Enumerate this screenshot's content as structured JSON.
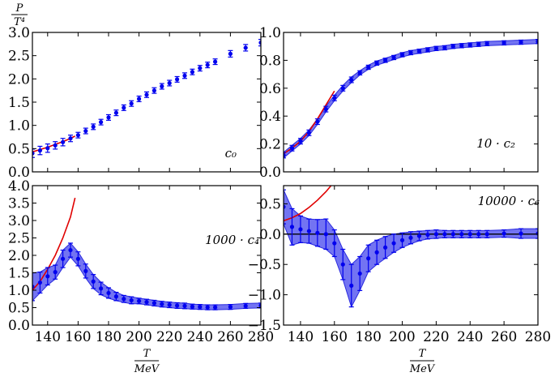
{
  "figure": {
    "ylabel_top": {
      "num": "P",
      "den": "T⁴"
    },
    "xlabel": {
      "num": "T",
      "den": "MeV"
    }
  },
  "chart_data": [
    {
      "type": "scatter",
      "panel": "c0",
      "label": "c₀",
      "xlim": [
        130,
        280
      ],
      "ylim": [
        0.0,
        3.0
      ],
      "xticks": [
        140,
        160,
        180,
        200,
        220,
        240,
        260,
        280
      ],
      "yticks": [
        "0.0",
        "0.5",
        "1.0",
        "1.5",
        "2.0",
        "2.5",
        "3.0"
      ],
      "show_xticklabels": false,
      "band": false,
      "points": [
        {
          "x": 130,
          "y": 0.4,
          "e": 0.09
        },
        {
          "x": 135,
          "y": 0.46,
          "e": 0.09
        },
        {
          "x": 140,
          "y": 0.51,
          "e": 0.09
        },
        {
          "x": 145,
          "y": 0.57,
          "e": 0.08
        },
        {
          "x": 150,
          "y": 0.64,
          "e": 0.08
        },
        {
          "x": 155,
          "y": 0.72,
          "e": 0.07
        },
        {
          "x": 160,
          "y": 0.79,
          "e": 0.06
        },
        {
          "x": 165,
          "y": 0.88,
          "e": 0.06
        },
        {
          "x": 170,
          "y": 0.97,
          "e": 0.06
        },
        {
          "x": 175,
          "y": 1.07,
          "e": 0.06
        },
        {
          "x": 180,
          "y": 1.17,
          "e": 0.06
        },
        {
          "x": 185,
          "y": 1.27,
          "e": 0.06
        },
        {
          "x": 190,
          "y": 1.38,
          "e": 0.06
        },
        {
          "x": 195,
          "y": 1.47,
          "e": 0.06
        },
        {
          "x": 200,
          "y": 1.57,
          "e": 0.06
        },
        {
          "x": 205,
          "y": 1.66,
          "e": 0.06
        },
        {
          "x": 210,
          "y": 1.75,
          "e": 0.06
        },
        {
          "x": 215,
          "y": 1.84,
          "e": 0.06
        },
        {
          "x": 220,
          "y": 1.91,
          "e": 0.06
        },
        {
          "x": 225,
          "y": 1.99,
          "e": 0.06
        },
        {
          "x": 230,
          "y": 2.07,
          "e": 0.06
        },
        {
          "x": 235,
          "y": 2.15,
          "e": 0.06
        },
        {
          "x": 240,
          "y": 2.23,
          "e": 0.06
        },
        {
          "x": 245,
          "y": 2.3,
          "e": 0.06
        },
        {
          "x": 250,
          "y": 2.37,
          "e": 0.06
        },
        {
          "x": 260,
          "y": 2.54,
          "e": 0.07
        },
        {
          "x": 270,
          "y": 2.67,
          "e": 0.07
        },
        {
          "x": 280,
          "y": 2.78,
          "e": 0.07
        }
      ],
      "red_curve": [
        [
          130,
          0.43
        ],
        [
          135,
          0.48
        ],
        [
          140,
          0.53
        ],
        [
          145,
          0.59
        ],
        [
          150,
          0.65
        ],
        [
          155,
          0.72
        ],
        [
          158,
          0.77
        ]
      ]
    },
    {
      "type": "scatter",
      "panel": "c2",
      "label": "10 · c₂",
      "xlim": [
        130,
        280
      ],
      "ylim": [
        0.0,
        1.0
      ],
      "xticks": [
        140,
        160,
        180,
        200,
        220,
        240,
        260,
        280
      ],
      "yticks": [
        "0.0",
        "0.2",
        "0.4",
        "0.6",
        "0.8",
        "1.0"
      ],
      "show_xticklabels": false,
      "band": true,
      "points": [
        {
          "x": 130,
          "y": 0.12,
          "e": 0.02
        },
        {
          "x": 135,
          "y": 0.17,
          "e": 0.02
        },
        {
          "x": 140,
          "y": 0.22,
          "e": 0.02
        },
        {
          "x": 145,
          "y": 0.28,
          "e": 0.02
        },
        {
          "x": 150,
          "y": 0.36,
          "e": 0.02
        },
        {
          "x": 155,
          "y": 0.45,
          "e": 0.02
        },
        {
          "x": 160,
          "y": 0.53,
          "e": 0.02
        },
        {
          "x": 165,
          "y": 0.6,
          "e": 0.02
        },
        {
          "x": 170,
          "y": 0.66,
          "e": 0.02
        },
        {
          "x": 175,
          "y": 0.71,
          "e": 0.015
        },
        {
          "x": 180,
          "y": 0.75,
          "e": 0.015
        },
        {
          "x": 185,
          "y": 0.78,
          "e": 0.015
        },
        {
          "x": 190,
          "y": 0.8,
          "e": 0.015
        },
        {
          "x": 195,
          "y": 0.82,
          "e": 0.015
        },
        {
          "x": 200,
          "y": 0.84,
          "e": 0.015
        },
        {
          "x": 205,
          "y": 0.855,
          "e": 0.015
        },
        {
          "x": 210,
          "y": 0.865,
          "e": 0.015
        },
        {
          "x": 215,
          "y": 0.875,
          "e": 0.015
        },
        {
          "x": 220,
          "y": 0.885,
          "e": 0.015
        },
        {
          "x": 225,
          "y": 0.89,
          "e": 0.015
        },
        {
          "x": 230,
          "y": 0.9,
          "e": 0.015
        },
        {
          "x": 235,
          "y": 0.905,
          "e": 0.015
        },
        {
          "x": 240,
          "y": 0.91,
          "e": 0.015
        },
        {
          "x": 245,
          "y": 0.915,
          "e": 0.015
        },
        {
          "x": 250,
          "y": 0.92,
          "e": 0.015
        },
        {
          "x": 260,
          "y": 0.925,
          "e": 0.015
        },
        {
          "x": 270,
          "y": 0.93,
          "e": 0.015
        },
        {
          "x": 280,
          "y": 0.935,
          "e": 0.015
        }
      ],
      "red_curve": [
        [
          130,
          0.13
        ],
        [
          135,
          0.17
        ],
        [
          140,
          0.22
        ],
        [
          145,
          0.29
        ],
        [
          150,
          0.38
        ],
        [
          155,
          0.48
        ],
        [
          160,
          0.58
        ]
      ]
    },
    {
      "type": "scatter",
      "panel": "c4",
      "label": "1000 · c₄",
      "xlim": [
        130,
        280
      ],
      "ylim": [
        0.0,
        4.0
      ],
      "xticks": [
        140,
        160,
        180,
        200,
        220,
        240,
        260,
        280
      ],
      "yticks": [
        "0.0",
        "0.5",
        "1.0",
        "1.5",
        "2.0",
        "2.5",
        "3.0",
        "3.5",
        "4.0"
      ],
      "show_xticklabels": true,
      "band": true,
      "points": [
        {
          "x": 130,
          "y": 1.1,
          "e": 0.4
        },
        {
          "x": 135,
          "y": 1.22,
          "e": 0.3
        },
        {
          "x": 140,
          "y": 1.4,
          "e": 0.25
        },
        {
          "x": 145,
          "y": 1.52,
          "e": 0.2
        },
        {
          "x": 150,
          "y": 1.9,
          "e": 0.25
        },
        {
          "x": 155,
          "y": 2.15,
          "e": 0.2
        },
        {
          "x": 160,
          "y": 1.9,
          "e": 0.2
        },
        {
          "x": 165,
          "y": 1.55,
          "e": 0.2
        },
        {
          "x": 170,
          "y": 1.25,
          "e": 0.2
        },
        {
          "x": 175,
          "y": 1.05,
          "e": 0.18
        },
        {
          "x": 180,
          "y": 0.92,
          "e": 0.15
        },
        {
          "x": 185,
          "y": 0.82,
          "e": 0.12
        },
        {
          "x": 190,
          "y": 0.75,
          "e": 0.1
        },
        {
          "x": 195,
          "y": 0.71,
          "e": 0.1
        },
        {
          "x": 200,
          "y": 0.69,
          "e": 0.08
        },
        {
          "x": 205,
          "y": 0.66,
          "e": 0.08
        },
        {
          "x": 210,
          "y": 0.63,
          "e": 0.08
        },
        {
          "x": 215,
          "y": 0.6,
          "e": 0.08
        },
        {
          "x": 220,
          "y": 0.58,
          "e": 0.08
        },
        {
          "x": 225,
          "y": 0.56,
          "e": 0.08
        },
        {
          "x": 230,
          "y": 0.55,
          "e": 0.08
        },
        {
          "x": 235,
          "y": 0.53,
          "e": 0.07
        },
        {
          "x": 240,
          "y": 0.52,
          "e": 0.07
        },
        {
          "x": 245,
          "y": 0.51,
          "e": 0.07
        },
        {
          "x": 250,
          "y": 0.51,
          "e": 0.07
        },
        {
          "x": 260,
          "y": 0.52,
          "e": 0.07
        },
        {
          "x": 270,
          "y": 0.55,
          "e": 0.07
        },
        {
          "x": 280,
          "y": 0.56,
          "e": 0.07
        }
      ],
      "red_curve": [
        [
          130,
          1.0
        ],
        [
          135,
          1.25
        ],
        [
          140,
          1.6
        ],
        [
          145,
          2.0
        ],
        [
          150,
          2.5
        ],
        [
          155,
          3.1
        ],
        [
          158,
          3.65
        ]
      ]
    },
    {
      "type": "scatter",
      "panel": "c6",
      "label": "10000 · c₆",
      "xlim": [
        130,
        280
      ],
      "ylim": [
        -1.5,
        0.8
      ],
      "xticks": [
        140,
        160,
        180,
        200,
        220,
        240,
        260,
        280
      ],
      "yticks": [
        "−1.5",
        "−1.0",
        "−0.5",
        "0.0",
        "0.5"
      ],
      "ytick_values": [
        -1.5,
        -1.0,
        -0.5,
        0.0,
        0.5
      ],
      "show_xticklabels": true,
      "band": true,
      "zero_line": true,
      "points": [
        {
          "x": 130,
          "y": 0.45,
          "e": 0.28
        },
        {
          "x": 135,
          "y": 0.12,
          "e": 0.3
        },
        {
          "x": 140,
          "y": 0.08,
          "e": 0.22
        },
        {
          "x": 145,
          "y": 0.05,
          "e": 0.2
        },
        {
          "x": 150,
          "y": 0.02,
          "e": 0.22
        },
        {
          "x": 155,
          "y": 0.0,
          "e": 0.25
        },
        {
          "x": 160,
          "y": -0.15,
          "e": 0.22
        },
        {
          "x": 165,
          "y": -0.5,
          "e": 0.25
        },
        {
          "x": 170,
          "y": -0.85,
          "e": 0.35
        },
        {
          "x": 175,
          "y": -0.65,
          "e": 0.28
        },
        {
          "x": 180,
          "y": -0.4,
          "e": 0.22
        },
        {
          "x": 185,
          "y": -0.3,
          "e": 0.2
        },
        {
          "x": 190,
          "y": -0.22,
          "e": 0.18
        },
        {
          "x": 195,
          "y": -0.15,
          "e": 0.15
        },
        {
          "x": 200,
          "y": -0.1,
          "e": 0.12
        },
        {
          "x": 205,
          "y": -0.06,
          "e": 0.1
        },
        {
          "x": 210,
          "y": -0.03,
          "e": 0.08
        },
        {
          "x": 215,
          "y": -0.01,
          "e": 0.07
        },
        {
          "x": 220,
          "y": 0.0,
          "e": 0.07
        },
        {
          "x": 225,
          "y": 0.0,
          "e": 0.06
        },
        {
          "x": 230,
          "y": 0.0,
          "e": 0.06
        },
        {
          "x": 235,
          "y": 0.0,
          "e": 0.06
        },
        {
          "x": 240,
          "y": 0.0,
          "e": 0.06
        },
        {
          "x": 245,
          "y": 0.0,
          "e": 0.06
        },
        {
          "x": 250,
          "y": 0.0,
          "e": 0.06
        },
        {
          "x": 260,
          "y": 0.01,
          "e": 0.06
        },
        {
          "x": 270,
          "y": 0.01,
          "e": 0.08
        },
        {
          "x": 280,
          "y": 0.01,
          "e": 0.08
        }
      ],
      "red_curve": [
        [
          130,
          0.22
        ],
        [
          135,
          0.27
        ],
        [
          140,
          0.34
        ],
        [
          145,
          0.44
        ],
        [
          150,
          0.56
        ],
        [
          155,
          0.7
        ],
        [
          158,
          0.8
        ]
      ]
    }
  ],
  "colors": {
    "points": "#0000ee",
    "band": "#5a5cf0",
    "band_edge": "#2b2be0",
    "curve": "#e00000",
    "axis": "#000000"
  }
}
